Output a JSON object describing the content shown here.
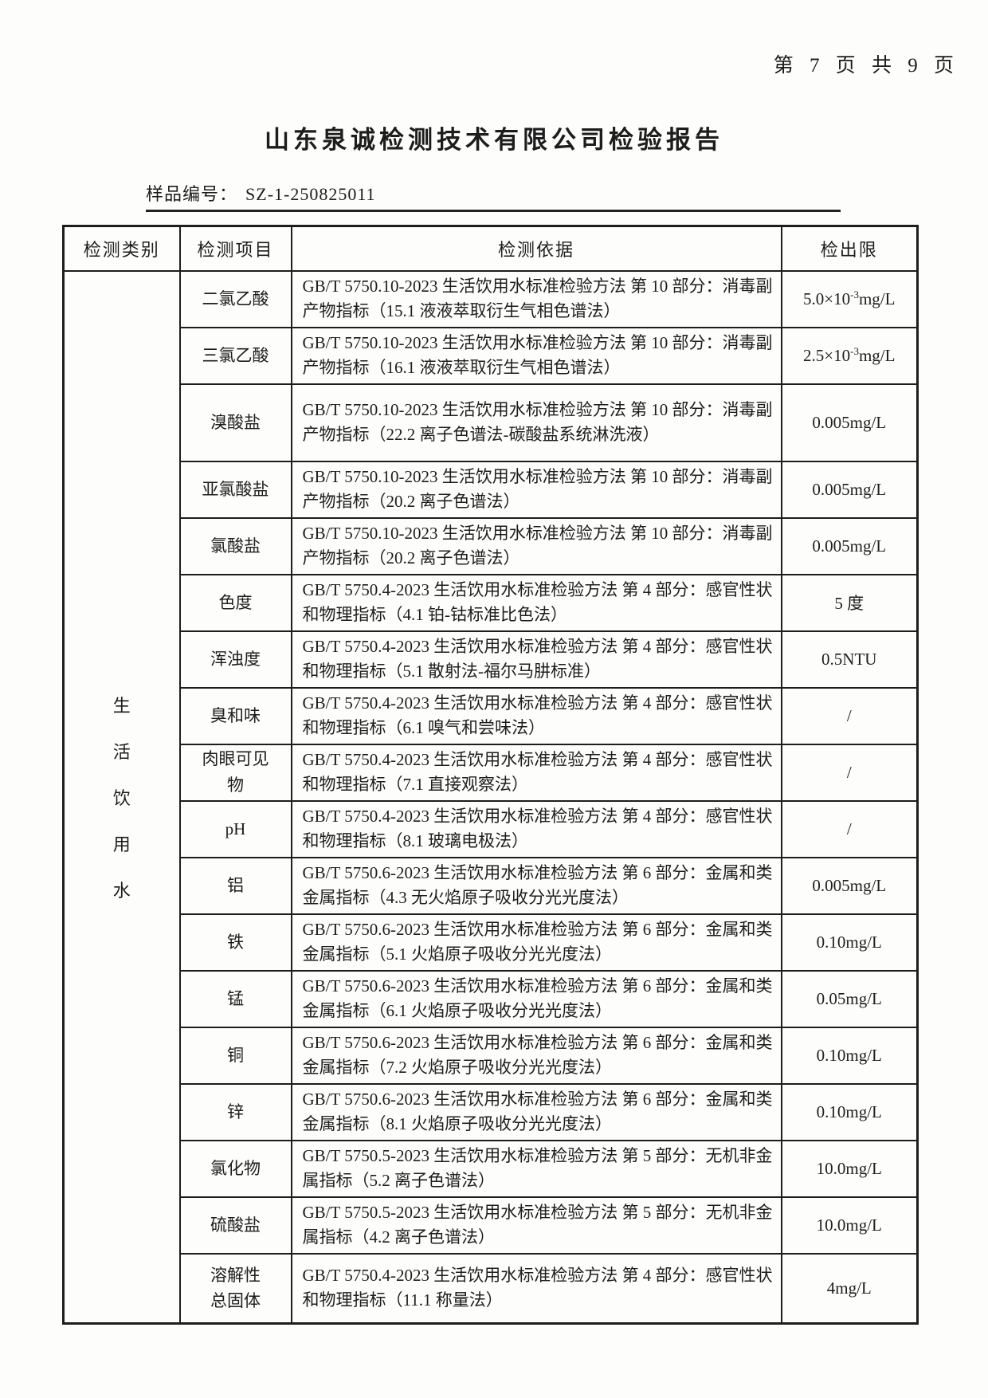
{
  "page": {
    "page_indicator": "第 7 页 共 9 页",
    "title": "山东泉诚检测技术有限公司检验报告",
    "sample_label": "样品编号：",
    "sample_number": "SZ-1-250825011"
  },
  "table": {
    "headers": [
      "检测类别",
      "检测项目",
      "检测依据",
      "检出限"
    ],
    "category": "生活饮用水",
    "rows": [
      {
        "item": "二氯乙酸",
        "method": "GB/T 5750.10-2023 生活饮用水标准检验方法 第 10 部分：消毒副产物指标（15.1 液液萃取衍生气相色谱法）",
        "limit": [
          "5.0×10",
          "-3",
          "mg/L"
        ]
      },
      {
        "item": "三氯乙酸",
        "method": "GB/T 5750.10-2023 生活饮用水标准检验方法 第 10 部分：消毒副产物指标（16.1 液液萃取衍生气相色谱法）",
        "limit": [
          "2.5×10",
          "-3",
          "mg/L"
        ]
      },
      {
        "item": "溴酸盐",
        "method": "GB/T 5750.10-2023 生活饮用水标准检验方法 第 10 部分：消毒副产物指标（22.2 离子色谱法-碳酸盐系统淋洗液）",
        "limit": [
          "0.005mg/L"
        ]
      },
      {
        "item": "亚氯酸盐",
        "method": "GB/T 5750.10-2023 生活饮用水标准检验方法 第 10 部分：消毒副产物指标（20.2 离子色谱法）",
        "limit": [
          "0.005mg/L"
        ]
      },
      {
        "item": "氯酸盐",
        "method": "GB/T 5750.10-2023 生活饮用水标准检验方法 第 10 部分：消毒副产物指标（20.2 离子色谱法）",
        "limit": [
          "0.005mg/L"
        ]
      },
      {
        "item": "色度",
        "method": "GB/T 5750.4-2023 生活饮用水标准检验方法 第 4 部分：感官性状和物理指标（4.1 铂-钴标准比色法）",
        "limit": [
          "5 度"
        ]
      },
      {
        "item": "浑浊度",
        "method": "GB/T 5750.4-2023 生活饮用水标准检验方法 第 4 部分：感官性状和物理指标（5.1 散射法-福尔马肼标准）",
        "limit": [
          "0.5NTU"
        ]
      },
      {
        "item": "臭和味",
        "method": "GB/T 5750.4-2023 生活饮用水标准检验方法 第 4 部分：感官性状和物理指标（6.1 嗅气和尝味法）",
        "limit": [
          "/"
        ]
      },
      {
        "item": "肉眼可见\n物",
        "method": "GB/T 5750.4-2023 生活饮用水标准检验方法 第 4 部分：感官性状和物理指标（7.1 直接观察法）",
        "limit": [
          "/"
        ]
      },
      {
        "item": "pH",
        "method": "GB/T 5750.4-2023 生活饮用水标准检验方法 第 4 部分：感官性状和物理指标（8.1 玻璃电极法）",
        "limit": [
          "/"
        ]
      },
      {
        "item": "铝",
        "method": "GB/T 5750.6-2023 生活饮用水标准检验方法 第 6 部分：金属和类金属指标（4.3 无火焰原子吸收分光光度法）",
        "limit": [
          "0.005mg/L"
        ]
      },
      {
        "item": "铁",
        "method": "GB/T 5750.6-2023 生活饮用水标准检验方法 第 6 部分：金属和类金属指标（5.1 火焰原子吸收分光光度法）",
        "limit": [
          "0.10mg/L"
        ]
      },
      {
        "item": "锰",
        "method": "GB/T 5750.6-2023 生活饮用水标准检验方法 第 6 部分：金属和类金属指标（6.1 火焰原子吸收分光光度法）",
        "limit": [
          "0.05mg/L"
        ]
      },
      {
        "item": "铜",
        "method": "GB/T 5750.6-2023 生活饮用水标准检验方法 第 6 部分：金属和类金属指标（7.2 火焰原子吸收分光光度法）",
        "limit": [
          "0.10mg/L"
        ]
      },
      {
        "item": "锌",
        "method": "GB/T 5750.6-2023 生活饮用水标准检验方法 第 6 部分：金属和类金属指标（8.1 火焰原子吸收分光光度法）",
        "limit": [
          "0.10mg/L"
        ]
      },
      {
        "item": "氯化物",
        "method": "GB/T 5750.5-2023 生活饮用水标准检验方法 第 5 部分：无机非金属指标（5.2 离子色谱法）",
        "limit": [
          "10.0mg/L"
        ]
      },
      {
        "item": "硫酸盐",
        "method": "GB/T 5750.5-2023 生活饮用水标准检验方法 第 5 部分：无机非金属指标（4.2 离子色谱法）",
        "limit": [
          "10.0mg/L"
        ]
      },
      {
        "item": "溶解性\n总固体",
        "method": "GB/T 5750.4-2023 生活饮用水标准检验方法 第 4 部分：感官性状和物理指标（11.1 称量法）",
        "limit": [
          "4mg/L"
        ]
      }
    ]
  }
}
